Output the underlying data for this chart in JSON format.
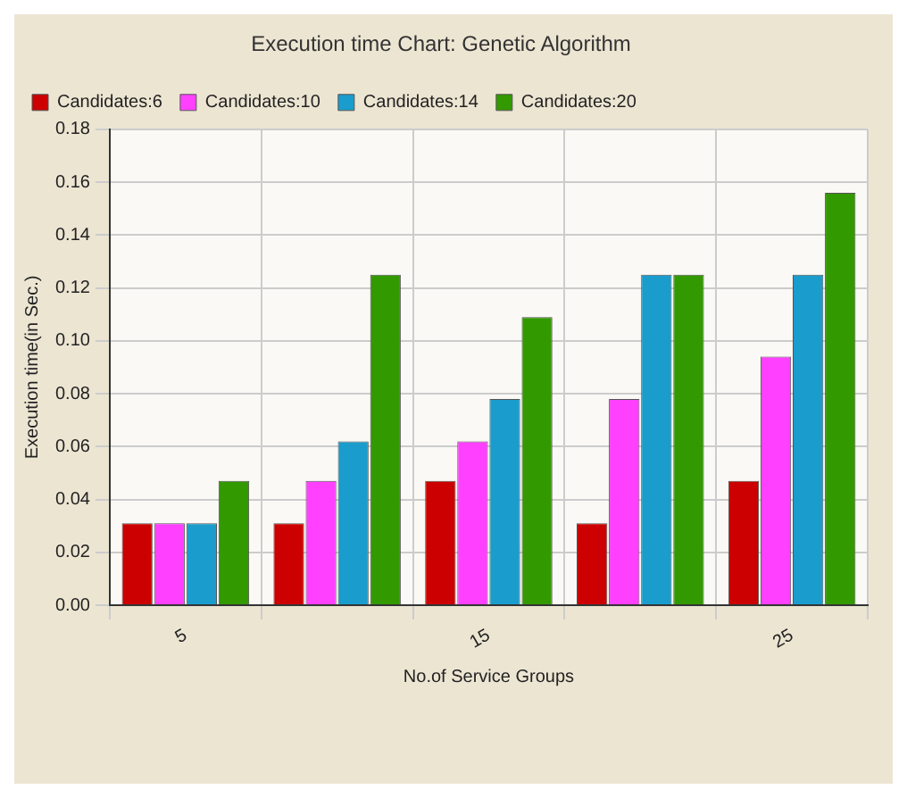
{
  "chart_data": {
    "type": "bar",
    "title": "Execution time Chart: Genetic Algorithm",
    "xlabel": "No.of Service Groups",
    "ylabel": "Execution time(in Sec.)",
    "categories": [
      "5",
      null,
      "15",
      null,
      "25"
    ],
    "series": [
      {
        "name": "Candidates:6",
        "color": "#cc0000",
        "values": [
          0.031,
          0.031,
          0.047,
          0.031,
          0.047
        ]
      },
      {
        "name": "Candidates:10",
        "color": "#ff40ff",
        "values": [
          0.031,
          0.047,
          0.062,
          0.078,
          0.094
        ]
      },
      {
        "name": "Candidates:14",
        "color": "#1a9ccc",
        "values": [
          0.031,
          0.062,
          0.078,
          0.125,
          0.125
        ]
      },
      {
        "name": "Candidates:20",
        "color": "#339900",
        "values": [
          0.047,
          0.125,
          0.109,
          0.125,
          0.156
        ]
      }
    ],
    "ylim": [
      0,
      0.18
    ],
    "yticks": [
      {
        "value": 0,
        "label": "0.00"
      },
      {
        "value": 0.02,
        "label": "0.02"
      },
      {
        "value": 0.04,
        "label": "0.04"
      },
      {
        "value": 0.06,
        "label": "0.06"
      },
      {
        "value": 0.08,
        "label": "0.08"
      },
      {
        "value": 0.1,
        "label": "0.10"
      },
      {
        "value": 0.12,
        "label": "0.12"
      },
      {
        "value": 0.14,
        "label": "0.14"
      },
      {
        "value": 0.16,
        "label": "0.16"
      },
      {
        "value": 0.18,
        "label": "0.18"
      }
    ],
    "grid": true,
    "legend": "top left"
  }
}
